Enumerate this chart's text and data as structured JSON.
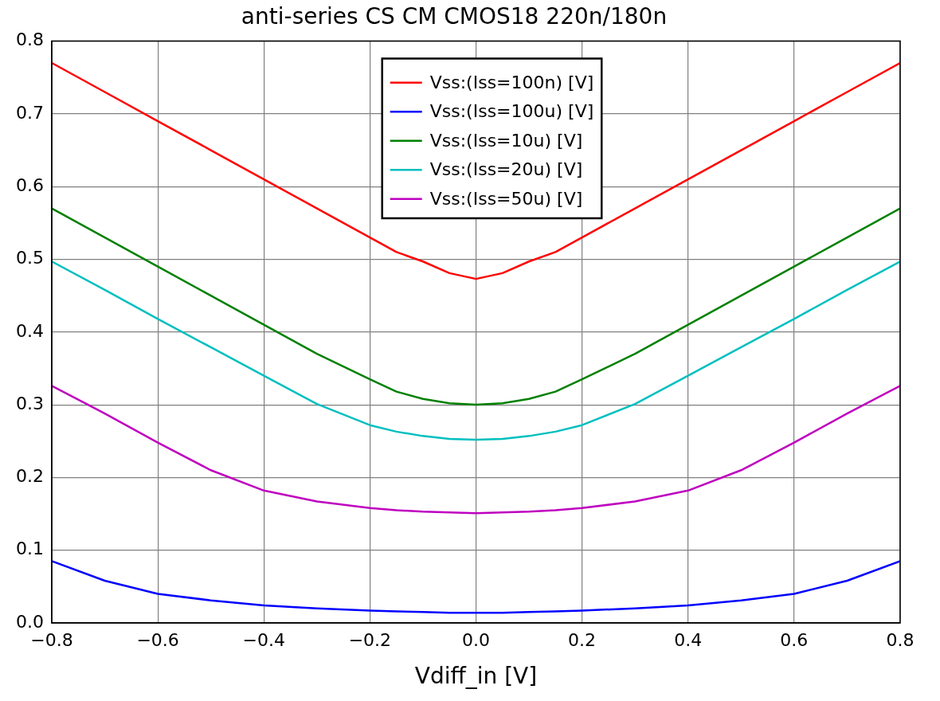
{
  "chart_data": {
    "type": "line",
    "title": "anti-series CS CM CMOS18 220n/180n",
    "xlabel": "Vdiff_in [V]",
    "x": [
      -0.8,
      -0.7,
      -0.6,
      -0.5,
      -0.4,
      -0.3,
      -0.2,
      -0.15,
      -0.1,
      -0.05,
      0,
      0.05,
      0.1,
      0.15,
      0.2,
      0.3,
      0.4,
      0.5,
      0.6,
      0.7,
      0.8
    ],
    "series": [
      {
        "name": "Vss:(Iss=100n) [V]",
        "color": "#ff0000",
        "values": [
          0.77,
          0.73,
          0.69,
          0.65,
          0.61,
          0.57,
          0.53,
          0.51,
          0.497,
          0.481,
          0.473,
          0.481,
          0.497,
          0.51,
          0.53,
          0.57,
          0.61,
          0.65,
          0.69,
          0.73,
          0.77
        ]
      },
      {
        "name": "Vss:(Iss=100u) [V]",
        "color": "#0000ff",
        "values": [
          0.085,
          0.058,
          0.04,
          0.031,
          0.024,
          0.02,
          0.017,
          0.016,
          0.015,
          0.014,
          0.014,
          0.014,
          0.015,
          0.016,
          0.017,
          0.02,
          0.024,
          0.031,
          0.04,
          0.058,
          0.085
        ]
      },
      {
        "name": "Vss:(Iss=10u) [V]",
        "color": "#008000",
        "values": [
          0.57,
          0.53,
          0.49,
          0.45,
          0.41,
          0.37,
          0.335,
          0.318,
          0.308,
          0.302,
          0.3,
          0.302,
          0.308,
          0.318,
          0.335,
          0.37,
          0.41,
          0.45,
          0.49,
          0.53,
          0.57
        ]
      },
      {
        "name": "Vss:(Iss=20u) [V]",
        "color": "#00bfbf",
        "values": [
          0.497,
          0.458,
          0.418,
          0.379,
          0.34,
          0.301,
          0.272,
          0.263,
          0.257,
          0.253,
          0.252,
          0.253,
          0.257,
          0.263,
          0.272,
          0.301,
          0.34,
          0.379,
          0.418,
          0.458,
          0.497
        ]
      },
      {
        "name": "Vss:(Iss=50u) [V]",
        "color": "#bf00bf",
        "values": [
          0.326,
          0.288,
          0.248,
          0.21,
          0.182,
          0.167,
          0.158,
          0.155,
          0.153,
          0.152,
          0.151,
          0.152,
          0.153,
          0.155,
          0.158,
          0.167,
          0.182,
          0.21,
          0.248,
          0.288,
          0.326
        ]
      }
    ],
    "xlim": [
      -0.8,
      0.8
    ],
    "xticks": [
      {
        "value": -0.8,
        "label": "−0.8"
      },
      {
        "value": -0.6,
        "label": "−0.6"
      },
      {
        "value": -0.4,
        "label": "−0.4"
      },
      {
        "value": -0.2,
        "label": "−0.2"
      },
      {
        "value": 0,
        "label": "0.0"
      },
      0.2,
      0.4,
      0.6,
      0.8
    ],
    "ylim": [
      0,
      0.8
    ],
    "yticks": [
      {
        "value": 0,
        "label": "0.0"
      },
      0.1,
      0.2,
      0.3,
      0.4,
      0.5,
      0.6,
      0.7,
      0.8
    ],
    "grid": true,
    "legend": "top",
    "marker": "none",
    "line_style": "solid"
  }
}
